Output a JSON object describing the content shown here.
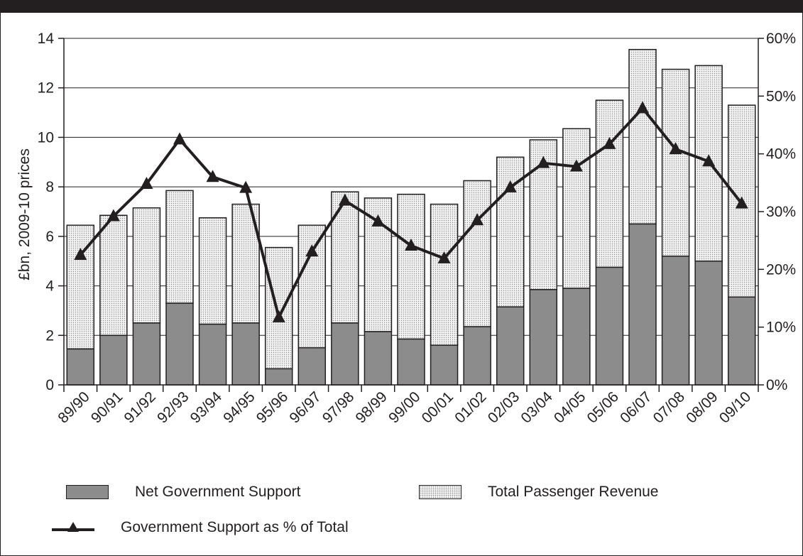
{
  "chart_data": {
    "type": "bar",
    "categories": [
      "89/90",
      "90/91",
      "91/92",
      "92/93",
      "93/94",
      "94/95",
      "95/96",
      "96/97",
      "97/98",
      "98/99",
      "99/00",
      "00/01",
      "01/02",
      "02/03",
      "03/04",
      "04/05",
      "05/06",
      "06/07",
      "07/08",
      "08/09",
      "09/10"
    ],
    "series": [
      {
        "name": "Net Government Support",
        "axis": "left",
        "style": "solid-grey",
        "values": [
          1.45,
          2.0,
          2.5,
          3.3,
          2.45,
          2.5,
          0.65,
          1.5,
          2.5,
          2.15,
          1.85,
          1.6,
          2.35,
          3.15,
          3.85,
          3.9,
          4.75,
          6.5,
          5.2,
          5.0,
          3.55
        ]
      },
      {
        "name": "Total Passenger Revenue",
        "axis": "left",
        "style": "dotted",
        "values": [
          5.0,
          4.85,
          4.65,
          4.55,
          4.3,
          4.8,
          4.9,
          4.95,
          5.3,
          5.4,
          5.85,
          5.7,
          5.9,
          6.05,
          6.05,
          6.45,
          6.75,
          7.05,
          7.55,
          7.9,
          7.75
        ]
      },
      {
        "name": "Government Support as % of Total",
        "axis": "right",
        "style": "line-triangle",
        "values": [
          22.5,
          29.2,
          34.8,
          42.5,
          36.0,
          34.1,
          11.7,
          23.1,
          31.9,
          28.3,
          24.1,
          21.9,
          28.5,
          34.2,
          38.4,
          37.8,
          41.7,
          47.9,
          40.8,
          38.7,
          31.4
        ]
      }
    ],
    "ylabel": "£bn, 2009-10 prices",
    "ylim": [
      0,
      14
    ],
    "yticks": [
      "0",
      "2",
      "4",
      "6",
      "8",
      "10",
      "12",
      "14"
    ],
    "y2lim": [
      0,
      60
    ],
    "y2ticks": [
      "0%",
      "10%",
      "20%",
      "30%",
      "40%",
      "50%",
      "60%"
    ],
    "grid": true,
    "stacked": true,
    "legend_position": "bottom"
  },
  "legend": {
    "net_support": "Net Government Support",
    "passenger_revenue": "Total Passenger Revenue",
    "support_pct": "Government Support as % of Total"
  },
  "colors": {
    "dark_bar": "#8c8c8c",
    "dotted_fill": "#f3f3f3",
    "line": "#231f20",
    "frame": "#231f20"
  }
}
